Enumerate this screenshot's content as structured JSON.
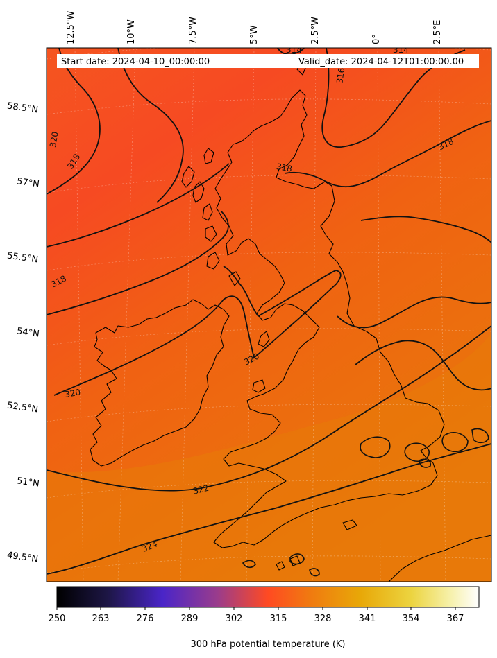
{
  "map": {
    "start_date_text": "Start date: 2024-04-10_00:00:00",
    "valid_date_text": "Valid_date: 2024-04-12T01:00:00.00",
    "longitude_labels": [
      "12.5°W",
      "10°W",
      "7.5°W",
      "5°W",
      "2.5°W",
      "0°",
      "2.5°E"
    ],
    "latitude_labels": [
      "58.5°N",
      "57°N",
      "55.5°N",
      "54°N",
      "52.5°N",
      "51°N",
      "49.5°N"
    ],
    "contour_labels": [
      "320",
      "318",
      "318",
      "320",
      "320",
      "322",
      "324",
      "318",
      "318",
      "316",
      "314",
      "314"
    ]
  },
  "colorbar": {
    "ticks": [
      "250",
      "263",
      "276",
      "289",
      "302",
      "315",
      "328",
      "341",
      "354",
      "367"
    ],
    "label": "300 hPa potential temperature (K)",
    "colors": [
      "#000000",
      "#2a1a6a",
      "#4a25c8",
      "#8a3aa6",
      "#d04560",
      "#ff4a22",
      "#f07a10",
      "#e8a808",
      "#ecd440",
      "#f6f0a8",
      "#ffffff"
    ]
  }
}
